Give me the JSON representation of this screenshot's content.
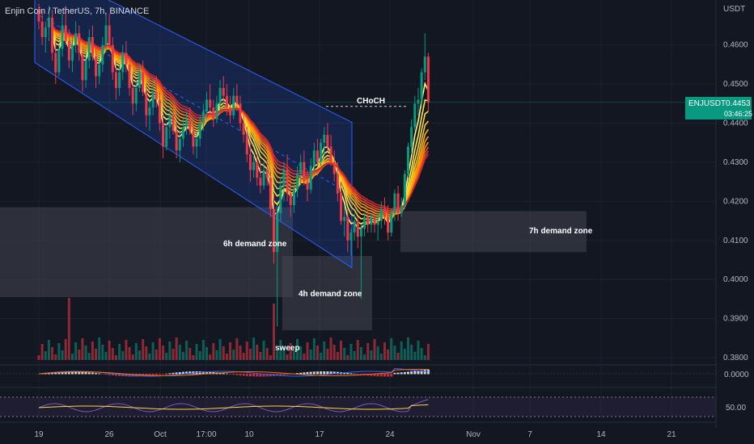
{
  "header": {
    "title": "Enjin Coin / TetherUS, 7h, BINANCE",
    "currency": "USDT"
  },
  "price_badge": {
    "symbol": "ENJUSDT",
    "price": "0.4453",
    "countdown": "03:46:25"
  },
  "colors": {
    "up": "#089981",
    "down": "#f23645",
    "channel": "#2962ff",
    "zone": "#434651",
    "bg": "#131722"
  },
  "annotations": {
    "choch": "CHoCH",
    "sweep": "sweep",
    "zone_6h": "6h demand zone",
    "zone_4h": "4h demand zone",
    "zone_7h": "7h demand zone"
  },
  "indicators": {
    "macd_label": "0.0000",
    "rsi_label": "50.00"
  },
  "chart_data": {
    "type": "candlestick",
    "title": "Enjin Coin / TetherUS, 7h, BINANCE",
    "y_ticks": [
      "0.4600",
      "0.4500",
      "0.4400",
      "0.4300",
      "0.4200",
      "0.4100",
      "0.4000",
      "0.3900",
      "0.3800"
    ],
    "ylim": [
      0.3765,
      0.4715
    ],
    "x_ticks": [
      "19",
      "26",
      "Oct",
      "17:00",
      "10",
      "17",
      "24",
      "Nov",
      "7",
      "14",
      "21"
    ],
    "last_price": 0.4453,
    "choch_level": 0.4443,
    "demand_zones": [
      {
        "name": "6h demand zone",
        "low": 0.3955,
        "high": 0.4185
      },
      {
        "name": "4h demand zone",
        "low": 0.387,
        "high": 0.406
      },
      {
        "name": "7h demand zone",
        "low": 0.407,
        "high": 0.4175
      }
    ],
    "channel": {
      "upper_start": 0.481,
      "upper_end": 0.4402,
      "lower_start": 0.4555,
      "lower_end": 0.403
    },
    "ohlc": [
      [
        0.469,
        0.4705,
        0.464,
        0.466
      ],
      [
        0.466,
        0.469,
        0.46,
        0.462
      ],
      [
        0.462,
        0.466,
        0.458,
        0.4645
      ],
      [
        0.4645,
        0.47,
        0.461,
        0.467
      ],
      [
        0.467,
        0.469,
        0.456,
        0.458
      ],
      [
        0.458,
        0.461,
        0.45,
        0.453
      ],
      [
        0.453,
        0.46,
        0.452,
        0.459
      ],
      [
        0.459,
        0.468,
        0.457,
        0.465
      ],
      [
        0.465,
        0.47,
        0.46,
        0.461
      ],
      [
        0.461,
        0.464,
        0.454,
        0.456
      ],
      [
        0.456,
        0.462,
        0.453,
        0.46
      ],
      [
        0.46,
        0.466,
        0.458,
        0.463
      ],
      [
        0.463,
        0.465,
        0.456,
        0.458
      ],
      [
        0.458,
        0.46,
        0.448,
        0.451
      ],
      [
        0.451,
        0.458,
        0.449,
        0.456
      ],
      [
        0.456,
        0.464,
        0.454,
        0.462
      ],
      [
        0.462,
        0.465,
        0.456,
        0.457
      ],
      [
        0.457,
        0.459,
        0.449,
        0.452
      ],
      [
        0.452,
        0.457,
        0.45,
        0.455
      ],
      [
        0.455,
        0.462,
        0.453,
        0.46
      ],
      [
        0.46,
        0.468,
        0.458,
        0.465
      ],
      [
        0.465,
        0.468,
        0.459,
        0.46
      ],
      [
        0.46,
        0.462,
        0.451,
        0.453
      ],
      [
        0.453,
        0.456,
        0.446,
        0.449
      ],
      [
        0.449,
        0.455,
        0.447,
        0.453
      ],
      [
        0.453,
        0.46,
        0.451,
        0.458
      ],
      [
        0.458,
        0.461,
        0.453,
        0.455
      ],
      [
        0.455,
        0.457,
        0.447,
        0.449
      ],
      [
        0.449,
        0.453,
        0.442,
        0.445
      ],
      [
        0.445,
        0.451,
        0.443,
        0.449
      ],
      [
        0.449,
        0.455,
        0.448,
        0.453
      ],
      [
        0.453,
        0.456,
        0.447,
        0.448
      ],
      [
        0.448,
        0.45,
        0.439,
        0.442
      ],
      [
        0.442,
        0.446,
        0.438,
        0.444
      ],
      [
        0.444,
        0.45,
        0.442,
        0.448
      ],
      [
        0.448,
        0.452,
        0.444,
        0.446
      ],
      [
        0.446,
        0.448,
        0.438,
        0.44
      ],
      [
        0.44,
        0.442,
        0.431,
        0.434
      ],
      [
        0.434,
        0.44,
        0.433,
        0.439
      ],
      [
        0.439,
        0.444,
        0.436,
        0.442
      ],
      [
        0.442,
        0.445,
        0.437,
        0.438
      ],
      [
        0.438,
        0.44,
        0.431,
        0.433
      ],
      [
        0.433,
        0.438,
        0.43,
        0.436
      ],
      [
        0.436,
        0.441,
        0.434,
        0.439
      ],
      [
        0.439,
        0.443,
        0.437,
        0.441
      ],
      [
        0.441,
        0.444,
        0.437,
        0.438
      ],
      [
        0.438,
        0.44,
        0.432,
        0.434
      ],
      [
        0.434,
        0.438,
        0.431,
        0.436
      ],
      [
        0.436,
        0.442,
        0.434,
        0.44
      ],
      [
        0.44,
        0.445,
        0.438,
        0.443
      ],
      [
        0.443,
        0.448,
        0.441,
        0.446
      ],
      [
        0.446,
        0.45,
        0.442,
        0.444
      ],
      [
        0.444,
        0.446,
        0.439,
        0.441
      ],
      [
        0.441,
        0.447,
        0.44,
        0.445
      ],
      [
        0.445,
        0.451,
        0.443,
        0.449
      ],
      [
        0.449,
        0.452,
        0.445,
        0.447
      ],
      [
        0.447,
        0.45,
        0.442,
        0.444
      ],
      [
        0.444,
        0.447,
        0.44,
        0.442
      ],
      [
        0.442,
        0.449,
        0.441,
        0.447
      ],
      [
        0.447,
        0.45,
        0.443,
        0.445
      ],
      [
        0.445,
        0.447,
        0.438,
        0.44
      ],
      [
        0.44,
        0.443,
        0.435,
        0.437
      ],
      [
        0.437,
        0.439,
        0.43,
        0.432
      ],
      [
        0.432,
        0.435,
        0.425,
        0.428
      ],
      [
        0.428,
        0.432,
        0.426,
        0.43
      ],
      [
        0.43,
        0.432,
        0.424,
        0.426
      ],
      [
        0.426,
        0.43,
        0.422,
        0.424
      ],
      [
        0.424,
        0.43,
        0.423,
        0.428
      ],
      [
        0.428,
        0.431,
        0.424,
        0.426
      ],
      [
        0.426,
        0.428,
        0.416,
        0.418
      ],
      [
        0.418,
        0.422,
        0.404,
        0.407
      ],
      [
        0.407,
        0.419,
        0.388,
        0.417
      ],
      [
        0.417,
        0.426,
        0.415,
        0.424
      ],
      [
        0.424,
        0.43,
        0.42,
        0.428
      ],
      [
        0.428,
        0.432,
        0.42,
        0.422
      ],
      [
        0.422,
        0.426,
        0.416,
        0.419
      ],
      [
        0.419,
        0.425,
        0.417,
        0.423
      ],
      [
        0.423,
        0.429,
        0.421,
        0.427
      ],
      [
        0.427,
        0.432,
        0.424,
        0.43
      ],
      [
        0.43,
        0.433,
        0.424,
        0.425
      ],
      [
        0.425,
        0.428,
        0.42,
        0.423
      ],
      [
        0.423,
        0.431,
        0.422,
        0.429
      ],
      [
        0.429,
        0.435,
        0.427,
        0.433
      ],
      [
        0.433,
        0.436,
        0.429,
        0.43
      ],
      [
        0.43,
        0.436,
        0.429,
        0.435
      ],
      [
        0.435,
        0.439,
        0.432,
        0.437
      ],
      [
        0.437,
        0.44,
        0.433,
        0.434
      ],
      [
        0.434,
        0.437,
        0.429,
        0.43
      ],
      [
        0.43,
        0.433,
        0.425,
        0.427
      ],
      [
        0.427,
        0.43,
        0.42,
        0.422
      ],
      [
        0.422,
        0.425,
        0.414,
        0.415
      ],
      [
        0.415,
        0.419,
        0.411,
        0.416
      ],
      [
        0.416,
        0.418,
        0.407,
        0.41
      ],
      [
        0.41,
        0.413,
        0.406,
        0.412
      ],
      [
        0.412,
        0.417,
        0.41,
        0.415
      ],
      [
        0.415,
        0.416,
        0.408,
        0.411
      ],
      [
        0.411,
        0.414,
        0.395,
        0.413
      ],
      [
        0.413,
        0.417,
        0.411,
        0.416
      ],
      [
        0.416,
        0.418,
        0.412,
        0.414
      ],
      [
        0.414,
        0.417,
        0.412,
        0.416
      ],
      [
        0.416,
        0.418,
        0.412,
        0.414
      ],
      [
        0.414,
        0.417,
        0.41,
        0.415
      ],
      [
        0.415,
        0.42,
        0.413,
        0.418
      ],
      [
        0.418,
        0.421,
        0.414,
        0.416
      ],
      [
        0.416,
        0.419,
        0.41,
        0.412
      ],
      [
        0.412,
        0.418,
        0.411,
        0.417
      ],
      [
        0.417,
        0.423,
        0.415,
        0.422
      ],
      [
        0.422,
        0.424,
        0.415,
        0.417
      ],
      [
        0.417,
        0.421,
        0.416,
        0.419
      ],
      [
        0.419,
        0.428,
        0.418,
        0.427
      ],
      [
        0.427,
        0.435,
        0.426,
        0.434
      ],
      [
        0.434,
        0.441,
        0.432,
        0.439
      ],
      [
        0.439,
        0.447,
        0.438,
        0.445
      ],
      [
        0.445,
        0.449,
        0.442,
        0.446
      ],
      [
        0.446,
        0.454,
        0.444,
        0.453
      ],
      [
        0.453,
        0.463,
        0.451,
        0.457
      ],
      [
        0.457,
        0.458,
        0.443,
        0.4453
      ]
    ]
  }
}
